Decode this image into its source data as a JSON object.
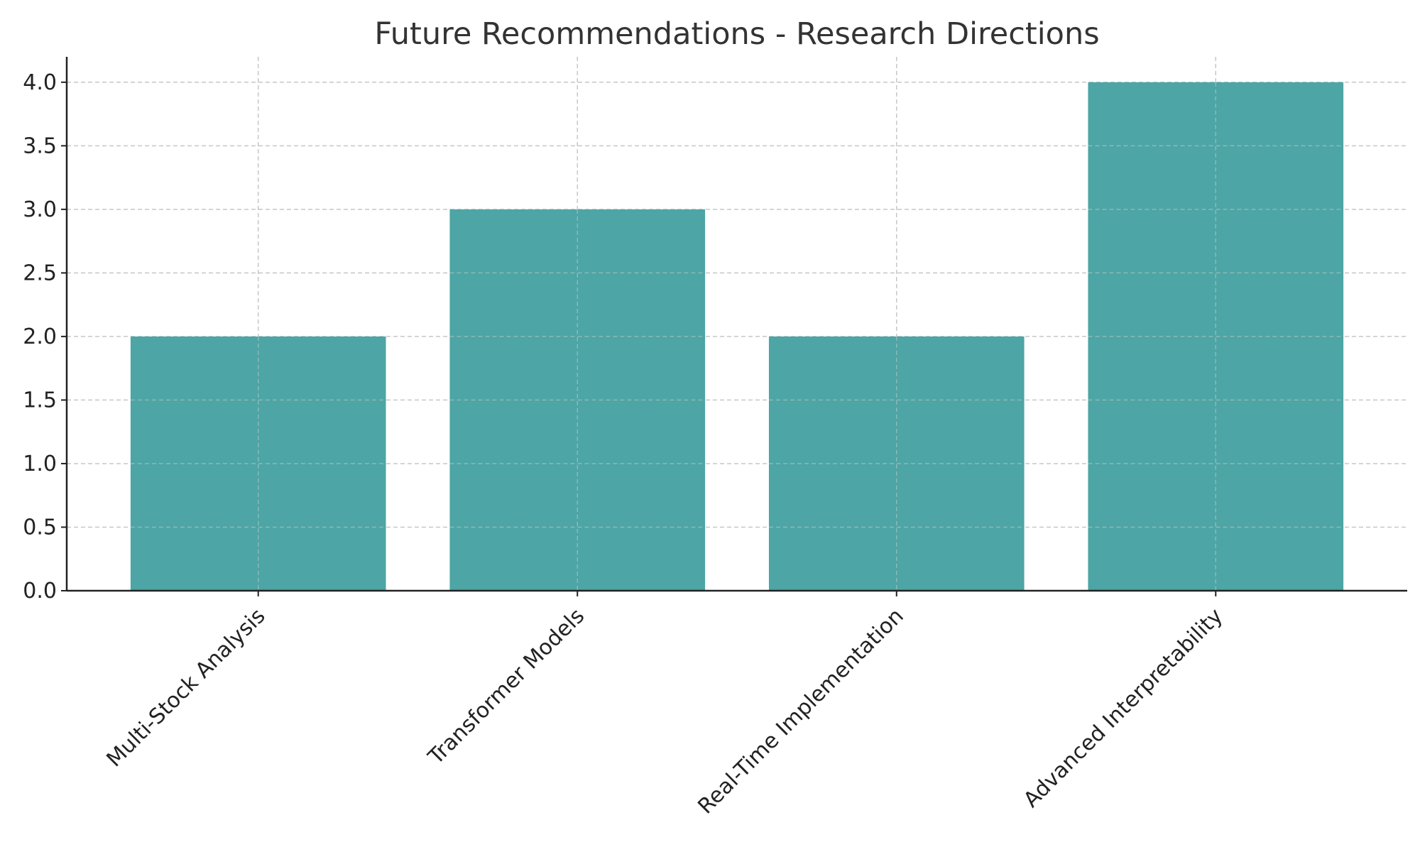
{
  "chart_data": {
    "type": "bar",
    "title": "Future Recommendations - Research Directions",
    "xlabel": "",
    "ylabel": "",
    "categories": [
      "Multi-Stock Analysis",
      "Transformer Models",
      "Real-Time Implementation",
      "Advanced Interpretability"
    ],
    "values": [
      2,
      3,
      2,
      4
    ],
    "ylim": [
      0,
      4.2
    ],
    "yticks": [
      0.0,
      0.5,
      1.0,
      1.5,
      2.0,
      2.5,
      3.0,
      3.5,
      4.0
    ],
    "ytick_labels": [
      "0.0",
      "0.5",
      "1.0",
      "1.5",
      "2.0",
      "2.5",
      "3.0",
      "3.5",
      "4.0"
    ],
    "grid": true,
    "colors": {
      "bar": "#4da5a5",
      "grid": "#c7c7c7",
      "axis": "#222222",
      "title": "#333333"
    }
  }
}
